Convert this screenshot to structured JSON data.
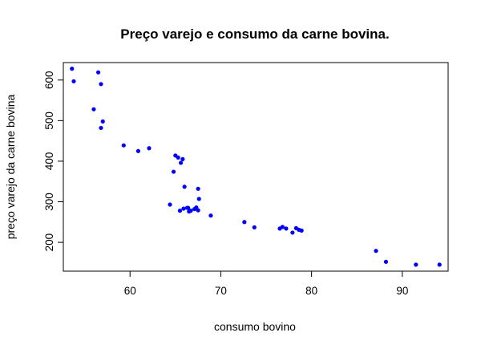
{
  "chart_data": {
    "type": "scatter",
    "title": "Preço varejo e consumo da carne bovina.",
    "xlabel": "consumo bovino",
    "ylabel": "preço varejo da carne bovina",
    "xlim": [
      52.65,
      95.05
    ],
    "ylim": [
      128.95,
      643.05
    ],
    "x_ticks": [
      60,
      70,
      80,
      90
    ],
    "y_ticks": [
      200,
      300,
      400,
      500,
      600
    ],
    "grid": false,
    "legend": "none",
    "point_color": "#0000ff",
    "x": [
      53.6,
      53.8,
      56.0,
      56.5,
      56.8,
      56.8,
      57.0,
      59.3,
      60.9,
      62.1,
      64.4,
      64.8,
      65.0,
      65.3,
      65.5,
      65.6,
      65.8,
      65.9,
      66.0,
      66.3,
      66.4,
      66.5,
      66.7,
      67.1,
      67.3,
      67.5,
      67.5,
      67.6,
      68.9,
      72.6,
      73.7,
      76.5,
      76.8,
      77.2,
      77.9,
      78.3,
      78.6,
      78.9,
      87.1,
      88.2,
      91.5,
      94.1
    ],
    "y": [
      628,
      597,
      528,
      619,
      482,
      590,
      498,
      439,
      425,
      432,
      293,
      374,
      414,
      409,
      278,
      396,
      405,
      283,
      337,
      285,
      285,
      276,
      278,
      282,
      286,
      332,
      279,
      307,
      266,
      250,
      237,
      234,
      238,
      234,
      224,
      235,
      231,
      229,
      179,
      152,
      145,
      145
    ]
  }
}
